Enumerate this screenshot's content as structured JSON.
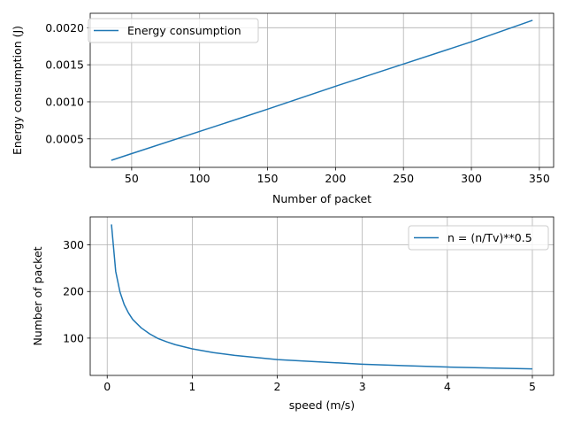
{
  "chart_data": [
    {
      "type": "line",
      "xlabel": "Number of packet",
      "ylabel": "Energy consumption (J)",
      "xlim": [
        19.5,
        360.5
      ],
      "ylim": [
        0.000115,
        0.002195
      ],
      "xticks": [
        50,
        100,
        150,
        200,
        250,
        300,
        350
      ],
      "xtick_labels": [
        "50",
        "100",
        "150",
        "200",
        "250",
        "300",
        "350"
      ],
      "yticks": [
        0.0005,
        0.001,
        0.0015,
        0.002
      ],
      "ytick_labels": [
        "0.0005",
        "0.0010",
        "0.0015",
        "0.0020"
      ],
      "grid": true,
      "legend_position": "upper-left",
      "color": "#1f77b4",
      "series": [
        {
          "name": "Energy consumption",
          "x": [
            35,
            50,
            100,
            150,
            200,
            250,
            300,
            345
          ],
          "y": [
            0.00021,
            0.0003,
            0.0006,
            0.0009,
            0.00121,
            0.00151,
            0.00181,
            0.0021
          ]
        }
      ]
    },
    {
      "type": "line",
      "xlabel": "speed (m/s)",
      "ylabel": "Number of packet",
      "xlim": [
        -0.2,
        5.25
      ],
      "ylim": [
        20,
        360
      ],
      "xticks": [
        0,
        1,
        2,
        3,
        4,
        5
      ],
      "xtick_labels": [
        "0",
        "1",
        "2",
        "3",
        "4",
        "5"
      ],
      "yticks": [
        100,
        200,
        300
      ],
      "ytick_labels": [
        "100",
        "200",
        "300"
      ],
      "grid": true,
      "legend_position": "upper-right",
      "color": "#1f77b4",
      "series": [
        {
          "name": "n = (n/Tv)**0.5",
          "x": [
            0.05,
            0.1,
            0.15,
            0.2,
            0.25,
            0.3,
            0.4,
            0.5,
            0.6,
            0.7,
            0.8,
            1.0,
            1.25,
            1.5,
            2.0,
            2.5,
            3.0,
            3.5,
            4.0,
            4.5,
            5.0
          ],
          "y": [
            344,
            243,
            199,
            172,
            154,
            140,
            122,
            109,
            99,
            92,
            86,
            77,
            69,
            63,
            54,
            49,
            44,
            41,
            38,
            36,
            34
          ]
        }
      ]
    }
  ]
}
